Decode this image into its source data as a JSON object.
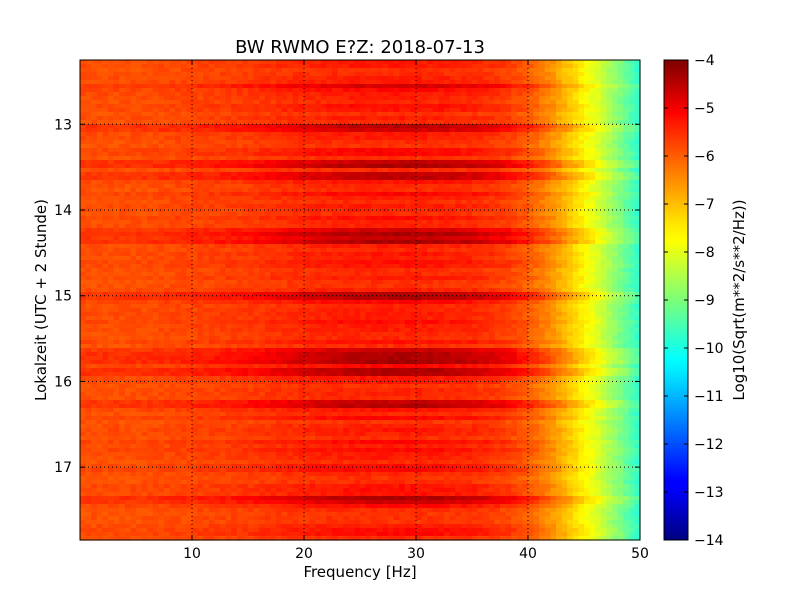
{
  "chart_data": {
    "type": "heatmap",
    "title": "BW RWMO E?Z: 2018-07-13",
    "xlabel": "Frequency [Hz]",
    "ylabel": "Lokalzeit (UTC + 2 Stunde)",
    "xlim": [
      0,
      50
    ],
    "ylim": [
      12.25,
      17.85
    ],
    "y_inverted": true,
    "x_ticks": [
      10,
      20,
      30,
      40,
      50
    ],
    "x_tick_labels": [
      "10",
      "20",
      "30",
      "40",
      "50"
    ],
    "y_ticks": [
      13,
      14,
      15,
      16,
      17
    ],
    "y_tick_labels": [
      "13",
      "14",
      "15",
      "16",
      "17"
    ],
    "grid": true,
    "colormap": "jet",
    "colorbar": {
      "label": "Log10(Sqrt(m**2/s**2/Hz))",
      "range": [
        -14,
        -4
      ],
      "ticks": [
        -4,
        -5,
        -6,
        -7,
        -8,
        -9,
        -10,
        -11,
        -12,
        -13,
        -14
      ],
      "tick_labels": [
        "−4",
        "−5",
        "−6",
        "−7",
        "−8",
        "−9",
        "−10",
        "−11",
        "−12",
        "−13",
        "−14"
      ]
    },
    "frequency_profile_hz": [
      0,
      5,
      10,
      15,
      20,
      25,
      30,
      35,
      38,
      40,
      42,
      44,
      46,
      48,
      50
    ],
    "frequency_profile_log10": [
      -6.0,
      -6.0,
      -5.9,
      -5.8,
      -5.6,
      -5.5,
      -5.5,
      -5.6,
      -5.8,
      -6.1,
      -6.6,
      -7.3,
      -8.0,
      -8.9,
      -9.8
    ],
    "strong_bands_local_time": [
      12.55,
      13.03,
      13.45,
      13.6,
      14.25,
      14.35,
      15.02,
      15.65,
      15.75,
      15.9,
      16.28,
      17.37
    ]
  }
}
